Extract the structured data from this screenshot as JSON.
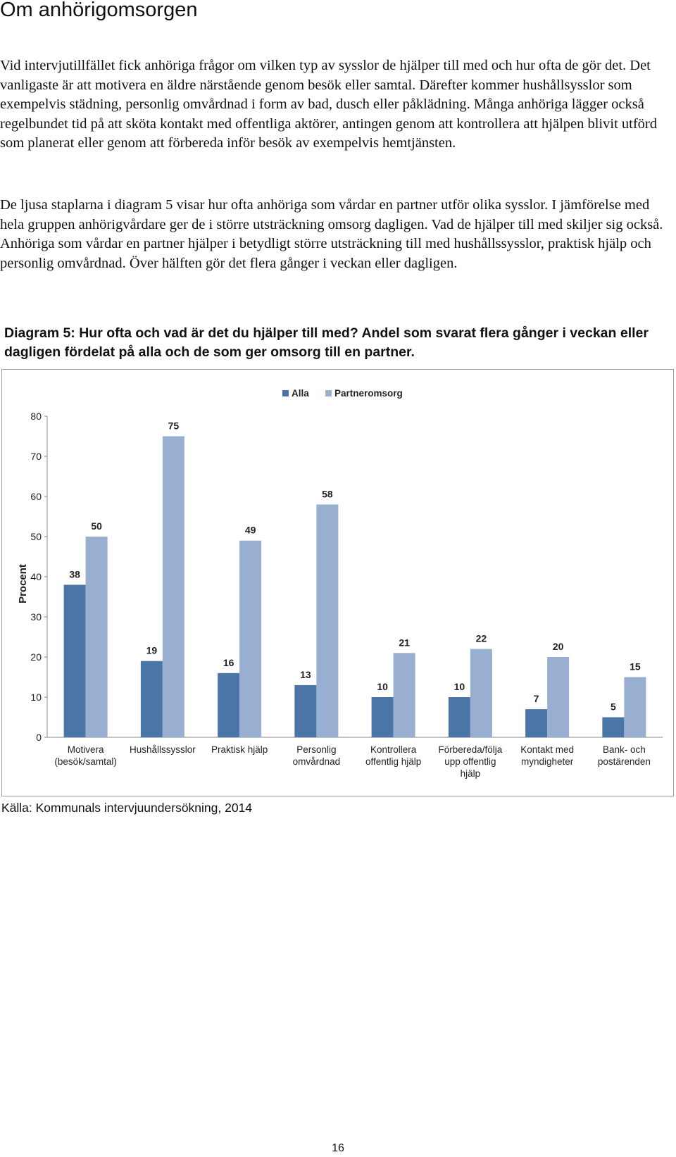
{
  "page": {
    "title": "Om anhörigomsorgen",
    "paragraphs": [
      "Vid intervjutillfället fick anhöriga frågor om vilken typ av sysslor de hjälper till med och hur ofta de gör det. Det vanligaste är att motivera en äldre närstående genom besök eller samtal. Därefter kommer hushållsysslor som exempelvis städning, personlig omvårdnad i form av bad, dusch eller påklädning. Många anhöriga lägger också regelbundet tid på att sköta kontakt med offentliga aktörer, antingen genom att kontrollera att hjälpen blivit utförd som planerat eller genom att förbereda inför besök av exempelvis hemtjänsten.",
      "De ljusa staplarna i diagram 5 visar hur ofta anhöriga som vårdar en partner utför olika sysslor. I jämförelse med hela gruppen anhörigvårdare ger de i större utsträckning omsorg dagligen. Vad de hjälper till med skiljer sig också. Anhöriga som vårdar en partner hjälper i betydligt större utsträckning till med hushållssysslor, praktisk hjälp och personlig omvårdnad. Över hälften gör det flera gånger i veckan eller dagligen."
    ],
    "chart_heading": "Diagram 5: Hur ofta och vad är det du hjälper till med? Andel som svarat flera gånger i veckan eller dagligen fördelat på alla och de som ger omsorg till en partner.",
    "source": "Källa: Kommunals intervjuundersökning, 2014",
    "page_number": "16"
  },
  "colors": {
    "alla": "#4a75a6",
    "partneromsorg": "#98afd1",
    "axis": "#8a8a8a",
    "text": "#222222"
  },
  "chart_data": {
    "type": "bar",
    "ylabel": "Procent",
    "xlabel": "",
    "ylim": [
      0,
      80
    ],
    "yticks": [
      0,
      10,
      20,
      30,
      40,
      50,
      60,
      70,
      80
    ],
    "grid": false,
    "legend_position": "top",
    "categories": [
      [
        "Motivera",
        "(besök/samtal)"
      ],
      [
        "Hushållssysslor"
      ],
      [
        "Praktisk hjälp"
      ],
      [
        "Personlig",
        "omvårdnad"
      ],
      [
        "Kontrollera",
        "offentlig hjälp"
      ],
      [
        "Förbereda/följa",
        "upp offentlig",
        "hjälp"
      ],
      [
        "Kontakt med",
        "myndigheter"
      ],
      [
        "Bank- och",
        "postärenden"
      ]
    ],
    "series": [
      {
        "name": "Alla",
        "values": [
          38,
          19,
          16,
          13,
          10,
          10,
          7,
          5
        ]
      },
      {
        "name": "Partneromsorg",
        "values": [
          50,
          75,
          49,
          58,
          21,
          22,
          20,
          15
        ]
      }
    ]
  }
}
